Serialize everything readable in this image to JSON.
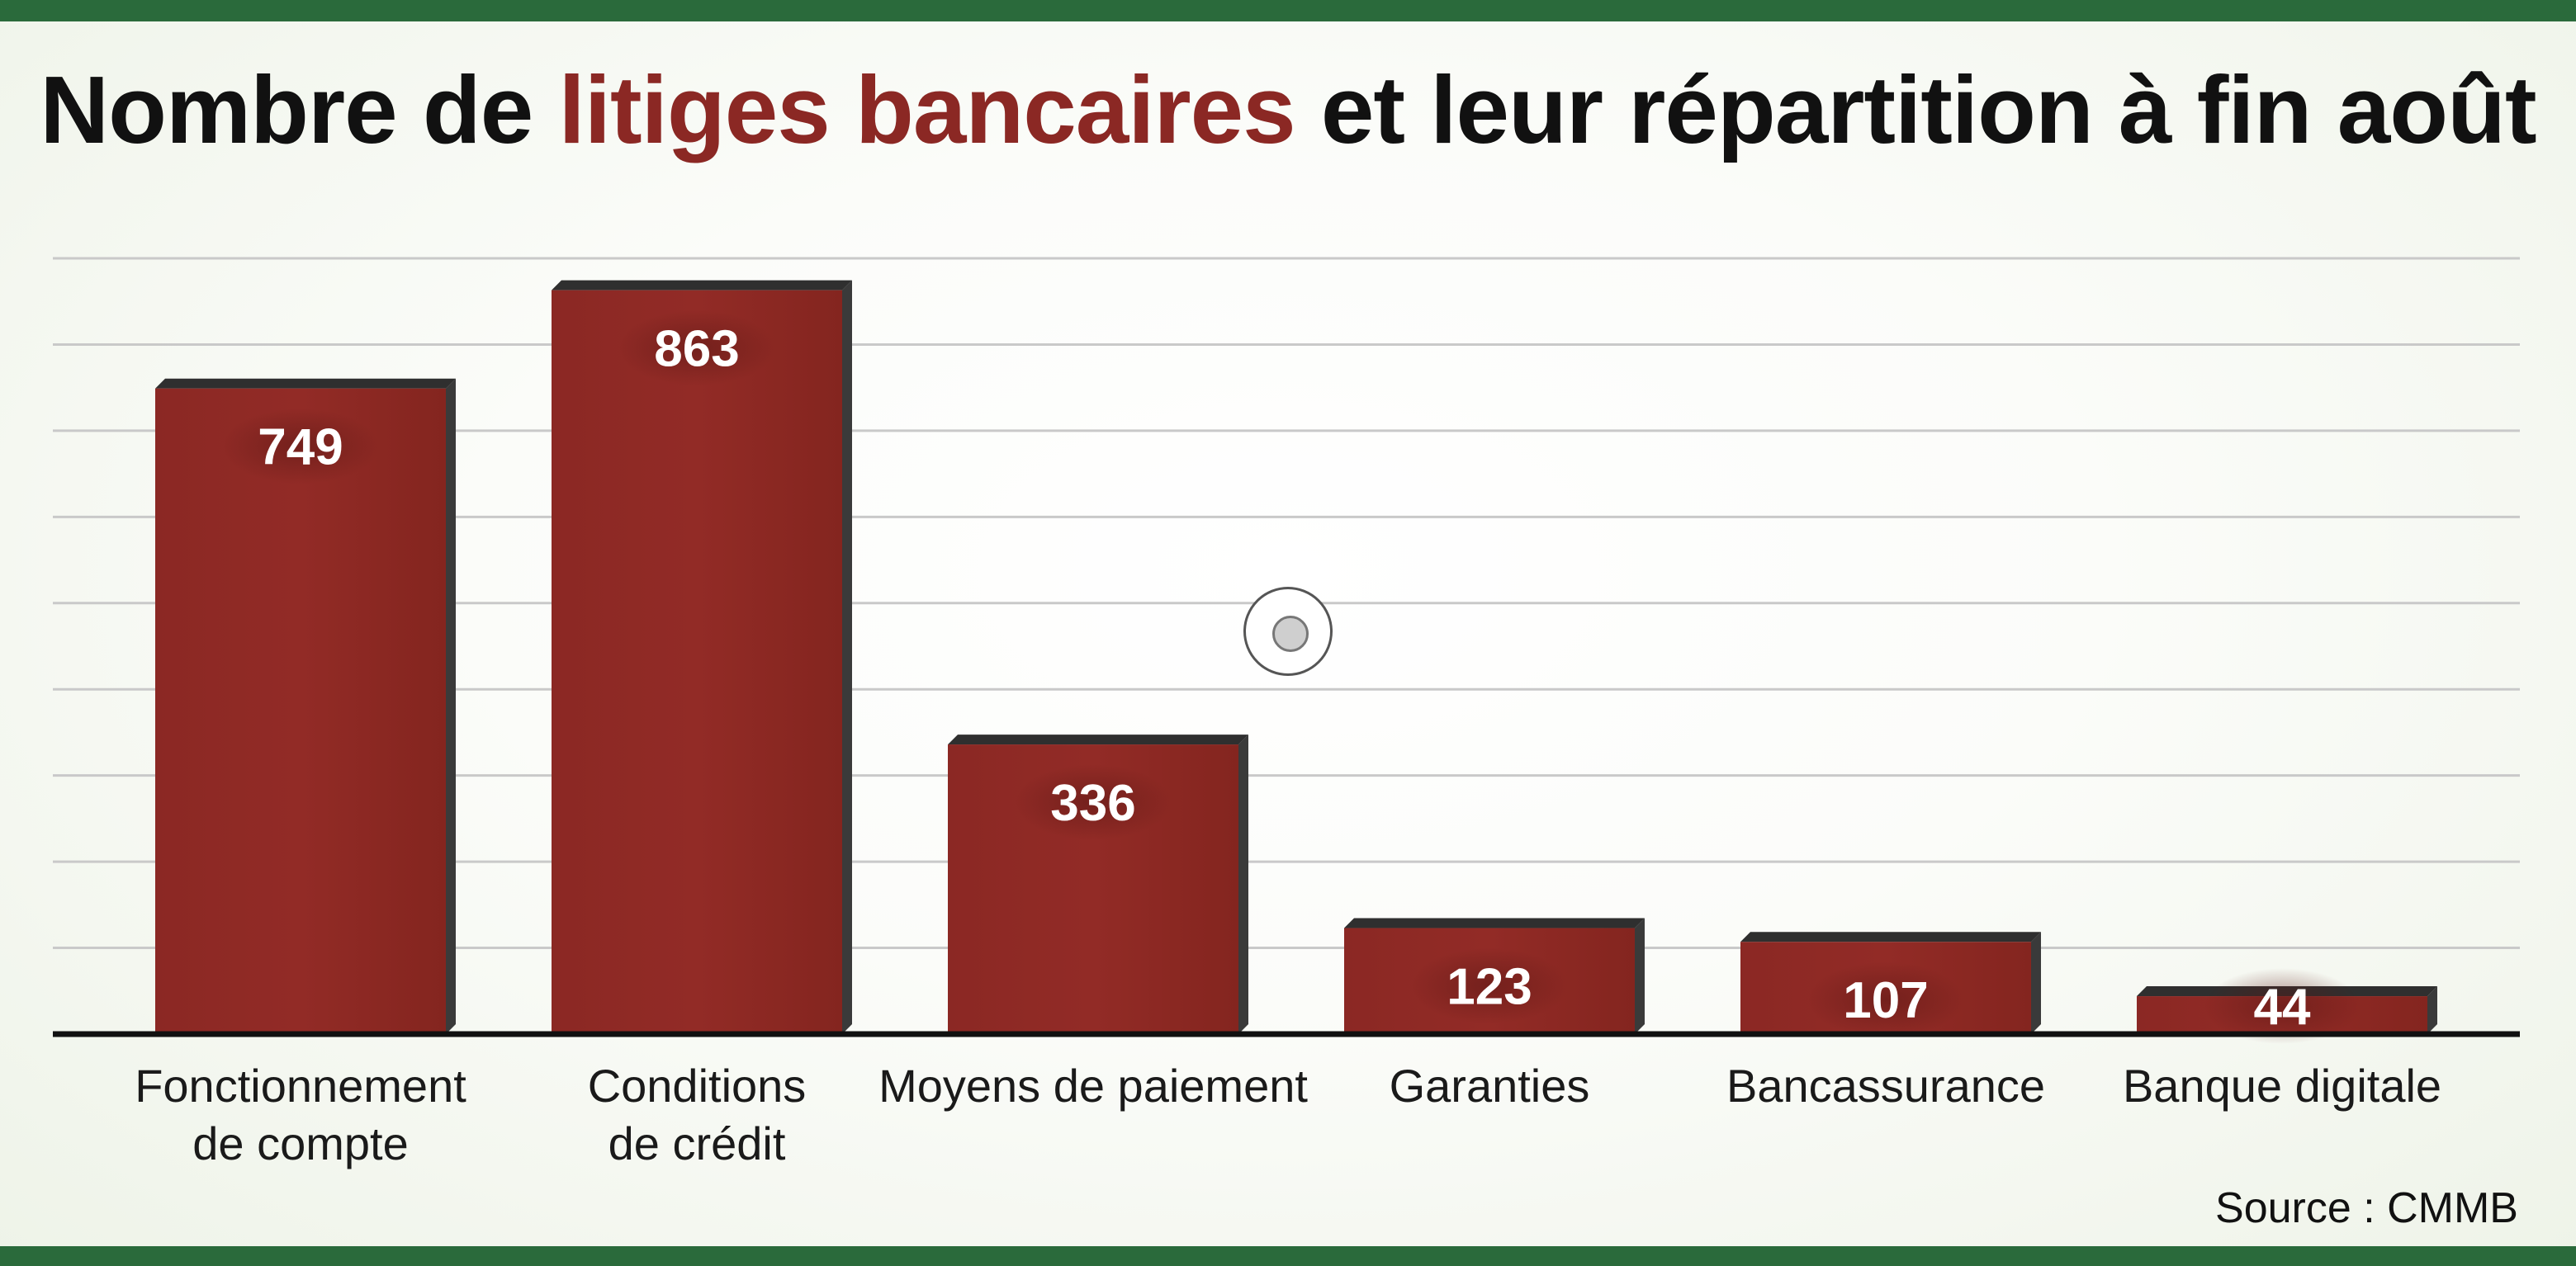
{
  "title": {
    "before": "Nombre de ",
    "highlight": "litiges bancaires",
    "after": " et leur répartition à fin août"
  },
  "source": "Source : CMMB",
  "colors": {
    "bar": "#8b2824",
    "title_highlight": "#8b2824",
    "band": "#2a6a3b"
  },
  "chart_data": {
    "type": "bar",
    "categories": [
      [
        "Fonctionnement",
        "de compte"
      ],
      [
        "Conditions",
        "de crédit"
      ],
      [
        "Moyens de paiement"
      ],
      [
        "Garanties"
      ],
      [
        "Bancassurance"
      ],
      [
        "Banque digitale"
      ]
    ],
    "values": [
      749,
      863,
      336,
      123,
      107,
      44
    ],
    "data_labels": [
      "749",
      "863",
      "336",
      "123",
      "107",
      "44"
    ],
    "ylim": [
      0,
      900
    ],
    "grid": true,
    "y_ticks_shown": false,
    "legend": "none"
  },
  "cursor": {
    "icon": "cursor-target-icon"
  }
}
